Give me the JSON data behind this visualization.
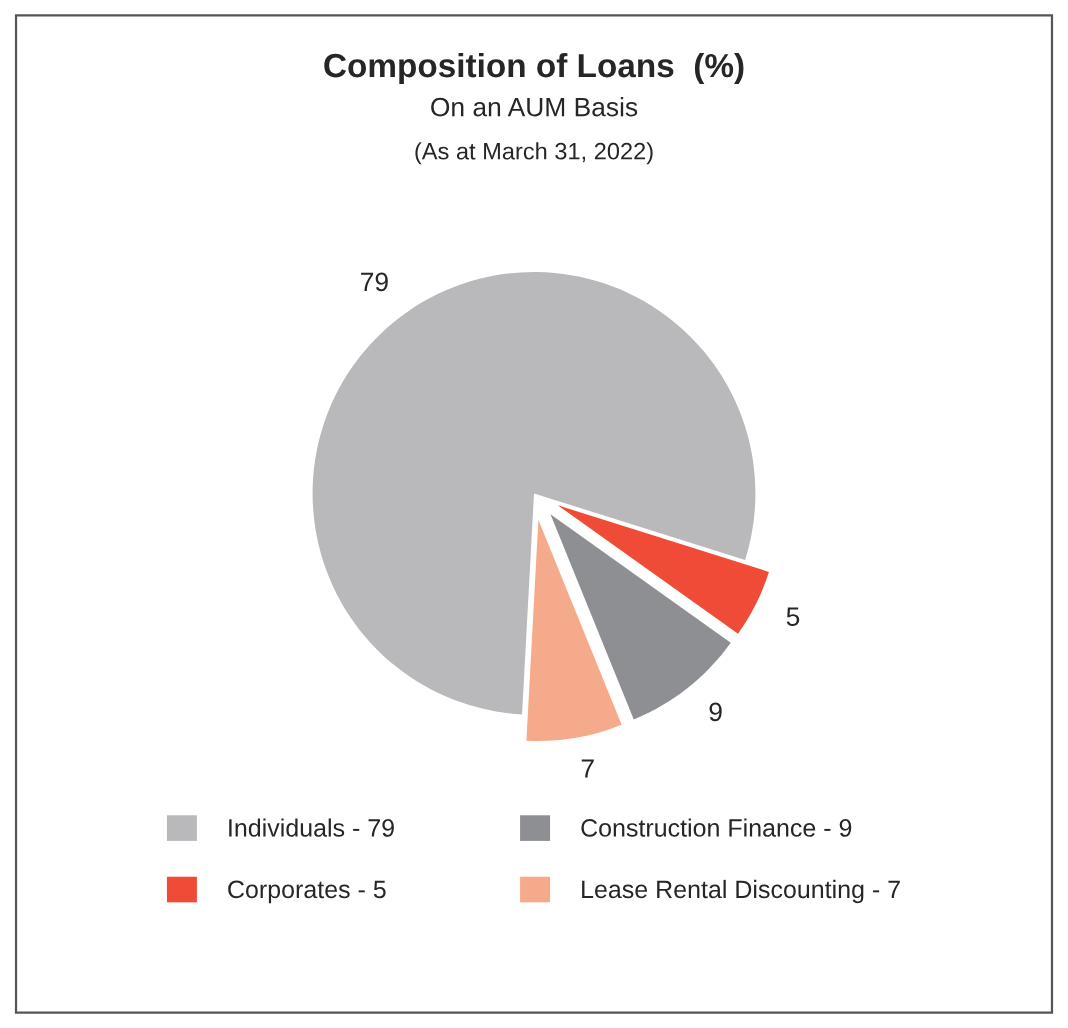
{
  "chart_data": {
    "type": "pie",
    "title": "Composition of Loans  (%)",
    "subtitle": "On an AUM Basis",
    "annotations": [
      "(As at March 31, 2022)"
    ],
    "categories": [
      "Individuals - 79",
      "Corporates - 5",
      "Construction Finance - 9",
      "Lease Rental Discounting - 7"
    ],
    "values": [
      79,
      5,
      9,
      7
    ],
    "colors": [
      "#b9b9bc",
      "#ef4b36",
      "#8e8f93",
      "#f6aa8c"
    ],
    "data_labels": true,
    "legend": "bottom"
  }
}
